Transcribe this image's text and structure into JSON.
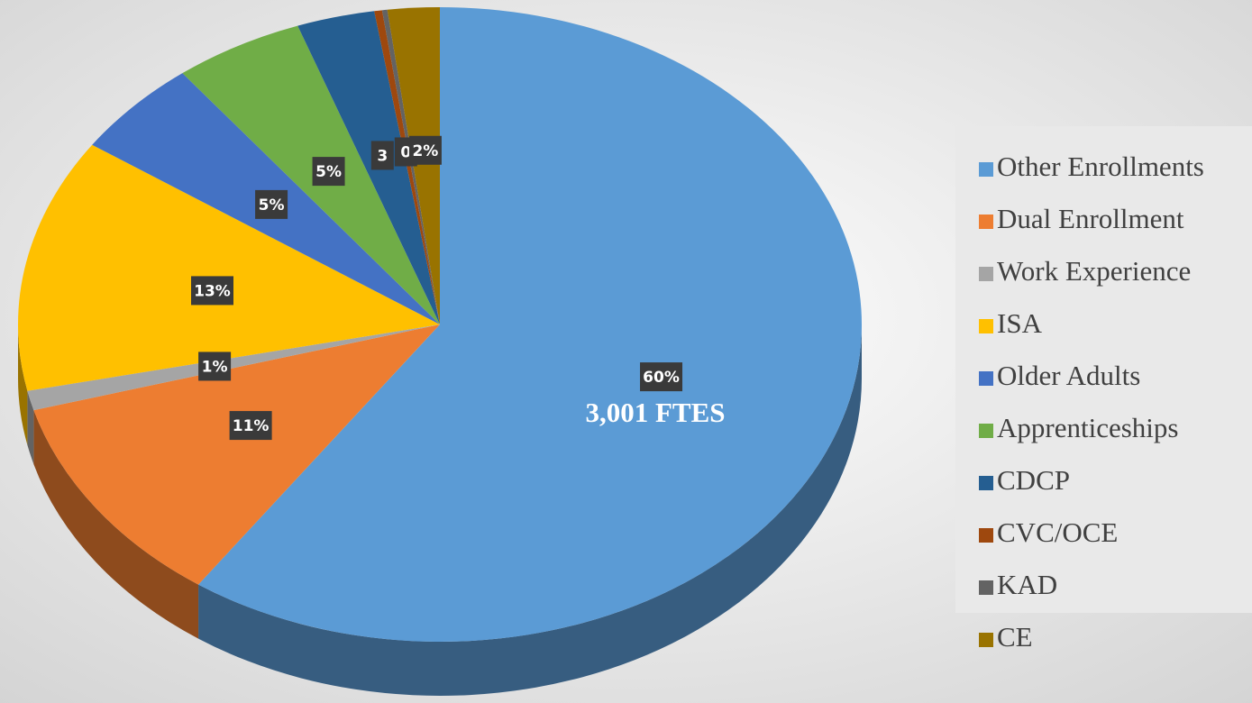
{
  "chart_data": {
    "type": "pie",
    "categories": [
      "Other Enrollments",
      "Dual Enrollment",
      "Work Experience",
      "ISA",
      "Older Adults",
      "Apprenticeships",
      "CDCP",
      "CVC/OCE",
      "KAD",
      "CE"
    ],
    "values": [
      60,
      11,
      1,
      13,
      5,
      5,
      3,
      0.3,
      0.2,
      2
    ],
    "value_labels": [
      "60%",
      "11%",
      "1%",
      "13%",
      "5%",
      "5%",
      "3",
      "0",
      null,
      "2%"
    ],
    "colors": [
      "#5b9bd5",
      "#ed7d31",
      "#a5a5a5",
      "#ffc000",
      "#4472c4",
      "#70ad47",
      "#255e91",
      "#9e480e",
      "#636363",
      "#997300"
    ],
    "annotation": "3,001 FTES",
    "legend": "right",
    "three_d": true
  }
}
